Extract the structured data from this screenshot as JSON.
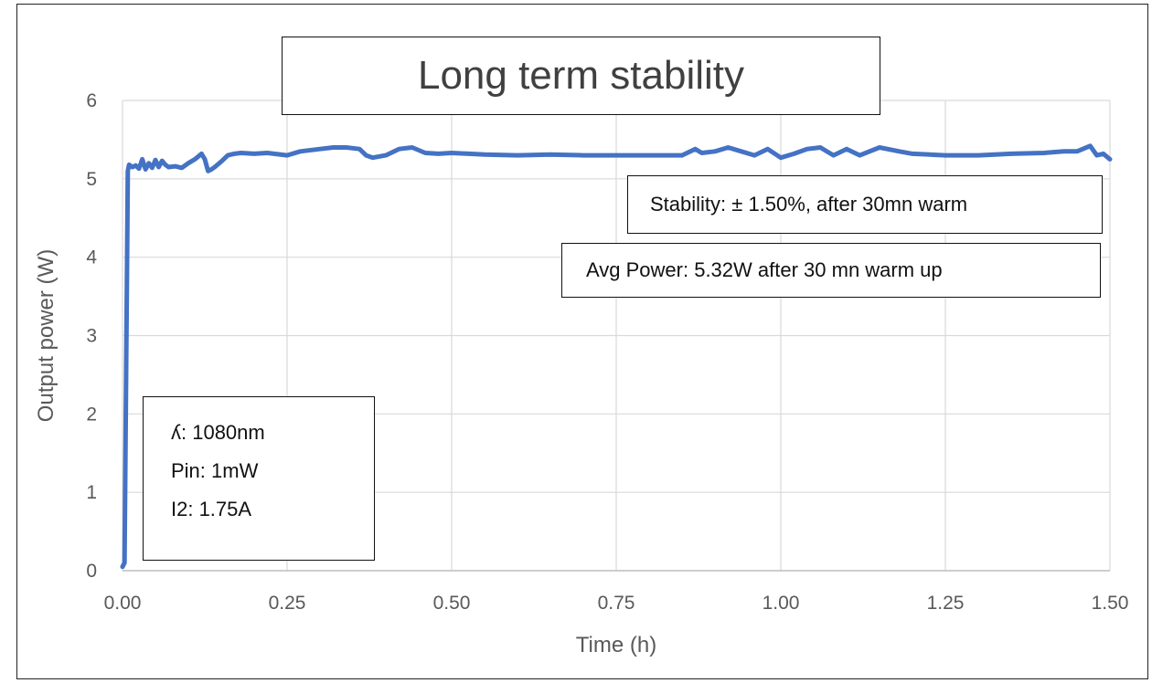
{
  "chart_data": {
    "type": "line",
    "title": "Long term stability",
    "xlabel": "Time (h)",
    "ylabel": "Output power (W)",
    "xlim": [
      0,
      1.5
    ],
    "ylim": [
      0,
      6
    ],
    "x_ticks": [
      "0.00",
      "0.25",
      "0.50",
      "0.75",
      "1.00",
      "1.25",
      "1.50"
    ],
    "y_ticks": [
      "0",
      "1",
      "2",
      "3",
      "4",
      "5",
      "6"
    ],
    "grid": true,
    "legend": "none",
    "series": [
      {
        "color": "#4472c4",
        "x": [
          0.0,
          0.003,
          0.006,
          0.008,
          0.01,
          0.015,
          0.02,
          0.025,
          0.03,
          0.035,
          0.04,
          0.045,
          0.05,
          0.055,
          0.06,
          0.065,
          0.07,
          0.08,
          0.09,
          0.1,
          0.11,
          0.12,
          0.125,
          0.13,
          0.135,
          0.14,
          0.15,
          0.16,
          0.17,
          0.18,
          0.2,
          0.22,
          0.25,
          0.27,
          0.3,
          0.32,
          0.34,
          0.36,
          0.37,
          0.38,
          0.4,
          0.42,
          0.44,
          0.46,
          0.48,
          0.5,
          0.55,
          0.6,
          0.65,
          0.7,
          0.75,
          0.8,
          0.85,
          0.87,
          0.88,
          0.9,
          0.92,
          0.94,
          0.96,
          0.98,
          1.0,
          1.02,
          1.04,
          1.06,
          1.08,
          1.1,
          1.12,
          1.15,
          1.18,
          1.2,
          1.25,
          1.3,
          1.35,
          1.4,
          1.43,
          1.45,
          1.47,
          1.48,
          1.49,
          1.5
        ],
        "y": [
          0.05,
          0.1,
          3.0,
          5.1,
          5.18,
          5.15,
          5.17,
          5.13,
          5.25,
          5.12,
          5.2,
          5.14,
          5.24,
          5.15,
          5.23,
          5.18,
          5.15,
          5.16,
          5.14,
          5.2,
          5.25,
          5.32,
          5.25,
          5.1,
          5.12,
          5.15,
          5.22,
          5.3,
          5.32,
          5.33,
          5.32,
          5.33,
          5.3,
          5.35,
          5.38,
          5.4,
          5.4,
          5.38,
          5.3,
          5.27,
          5.3,
          5.38,
          5.4,
          5.33,
          5.32,
          5.33,
          5.31,
          5.3,
          5.31,
          5.3,
          5.3,
          5.3,
          5.3,
          5.38,
          5.33,
          5.35,
          5.4,
          5.35,
          5.3,
          5.38,
          5.27,
          5.32,
          5.38,
          5.4,
          5.3,
          5.38,
          5.3,
          5.4,
          5.35,
          5.32,
          5.3,
          5.3,
          5.32,
          5.33,
          5.35,
          5.35,
          5.42,
          5.3,
          5.32,
          5.25
        ]
      }
    ]
  },
  "annotations": {
    "stability": "Stability: ± 1.50%, after 30mn warm",
    "avg_power": "Avg Power: 5.32W after 30 mn warm up",
    "params": [
      "ʎ: 1080nm",
      "Pin: 1mW",
      "I2: 1.75A"
    ]
  }
}
